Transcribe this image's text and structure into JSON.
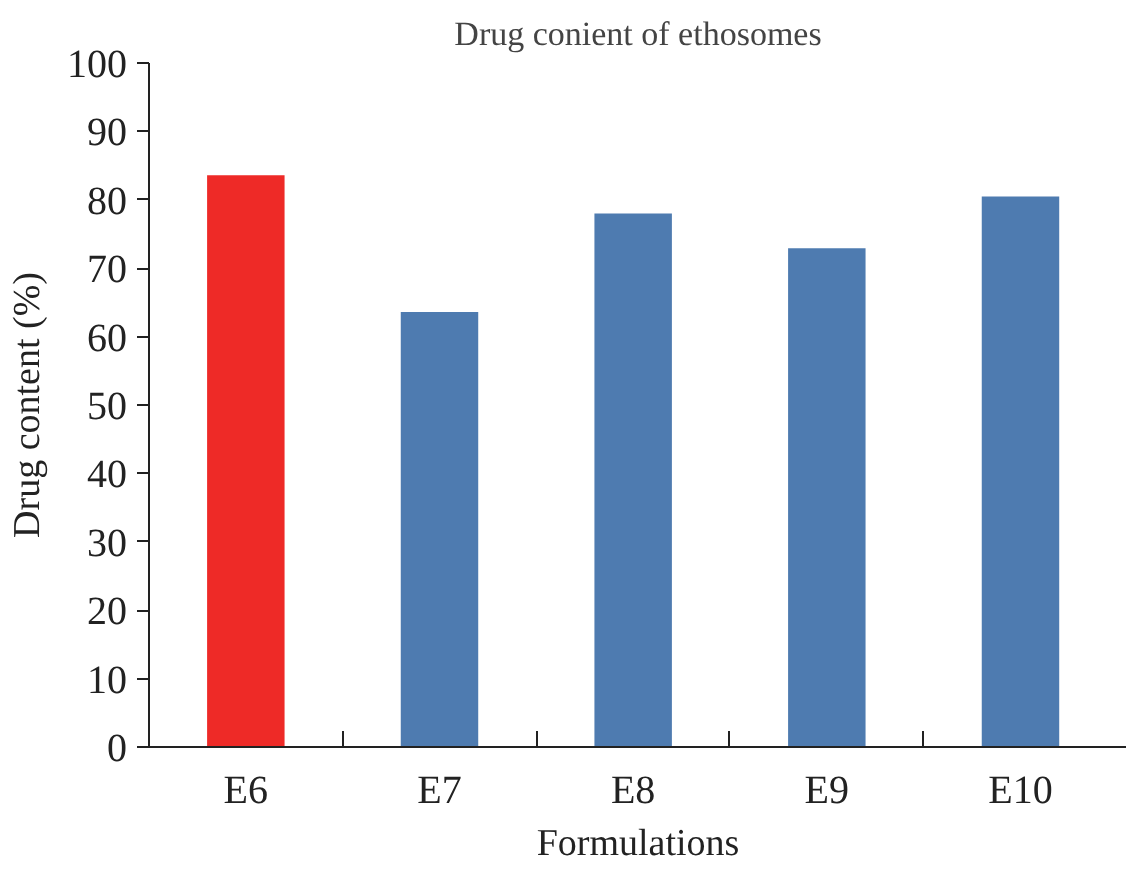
{
  "chart_data": {
    "type": "bar",
    "title": "Drug conient of ethosomes",
    "xlabel": "Formulations",
    "ylabel": "Drug content (%)",
    "categories": [
      "E6",
      "E7",
      "E8",
      "E9",
      "E10"
    ],
    "values": [
      83.6,
      63.6,
      78.0,
      72.9,
      80.5
    ],
    "colors": [
      "#ee2a27",
      "#4e7bb0",
      "#4e7bb0",
      "#4e7bb0",
      "#4e7bb0"
    ],
    "ylim": [
      0,
      100
    ],
    "yticks": [
      0,
      10,
      20,
      30,
      40,
      50,
      60,
      70,
      80,
      90,
      100
    ],
    "grid": false
  }
}
